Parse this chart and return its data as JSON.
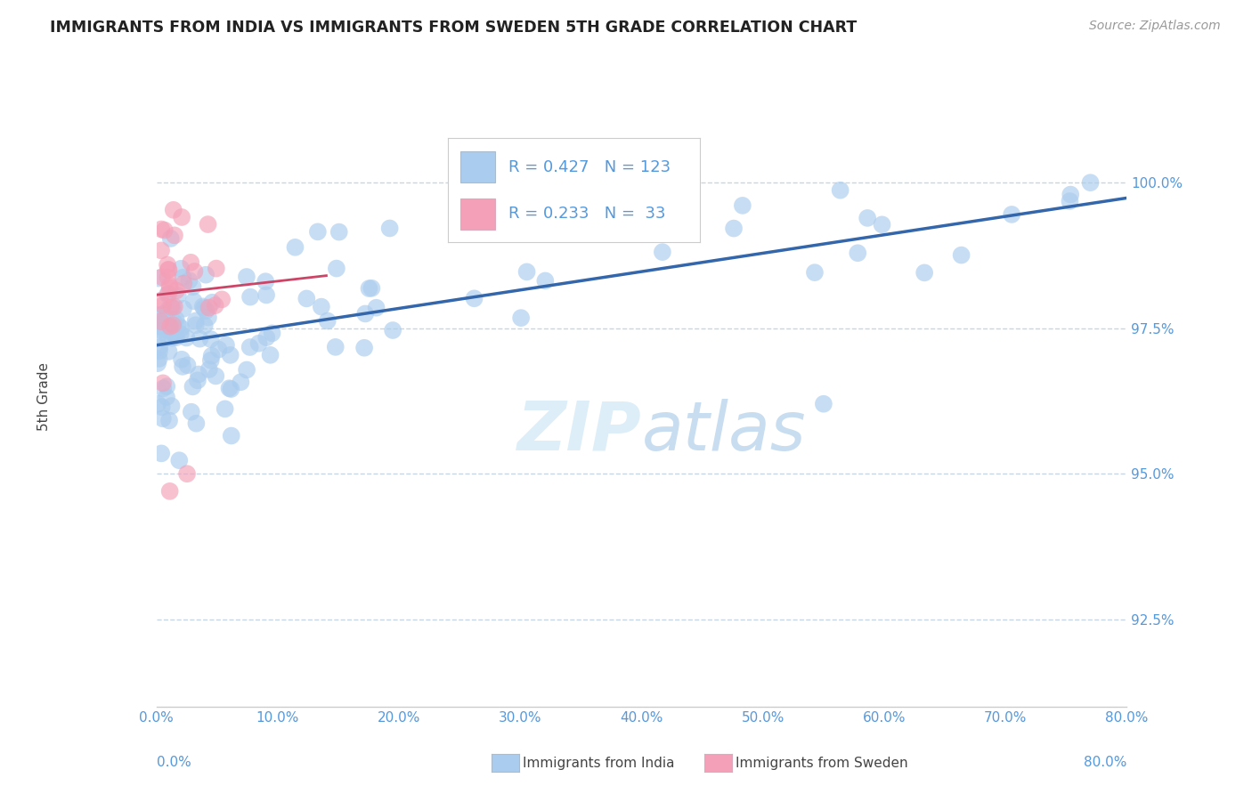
{
  "title": "IMMIGRANTS FROM INDIA VS IMMIGRANTS FROM SWEDEN 5TH GRADE CORRELATION CHART",
  "source": "Source: ZipAtlas.com",
  "ylabel": "5th Grade",
  "legend_india": "Immigrants from India",
  "legend_sweden": "Immigrants from Sweden",
  "R_india": 0.427,
  "N_india": 123,
  "R_sweden": 0.233,
  "N_sweden": 33,
  "xlim": [
    0.0,
    80.0
  ],
  "ylim": [
    91.0,
    101.5
  ],
  "yticks": [
    92.5,
    95.0,
    97.5,
    100.0
  ],
  "xtick_vals": [
    0,
    10,
    20,
    30,
    40,
    50,
    60,
    70,
    80
  ],
  "xtick_labels": [
    "0.0%",
    "10.0%",
    "20.0%",
    "30.0%",
    "40.0%",
    "50.0%",
    "60.0%",
    "70.0%",
    "80.0%"
  ],
  "color_india": "#aaccee",
  "color_sweden": "#f4a0b8",
  "trendline_india": "#3366aa",
  "trendline_sweden": "#cc4466",
  "background_color": "#ffffff",
  "title_color": "#222222",
  "axis_color": "#5599dd",
  "grid_color": "#bbccdd",
  "tick_color": "#888888",
  "ylabel_color": "#444444",
  "source_color": "#999999",
  "legend_text_color": "#222222",
  "watermark_color": "#ddeeff",
  "bottom_label_color": "#5599dd"
}
